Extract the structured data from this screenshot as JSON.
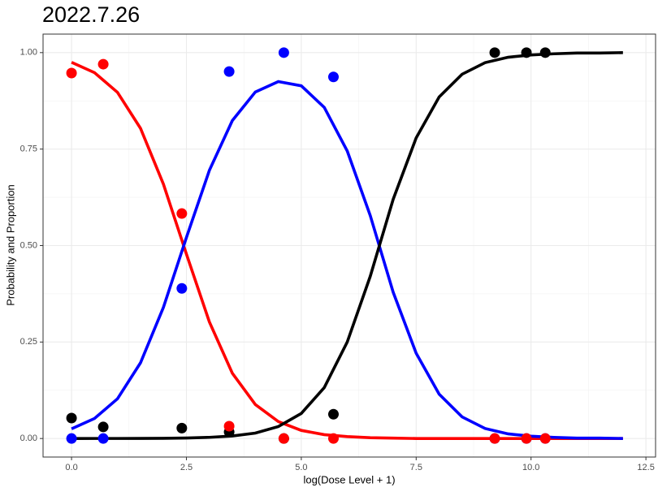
{
  "chart_data": {
    "type": "line",
    "title": "2022.7.26",
    "x_label": "log(Dose Level + 1)",
    "y_label": "Probability and Proportion",
    "xlim": [
      -0.62,
      12.71
    ],
    "ylim": [
      -0.048,
      1.048
    ],
    "xticks": [
      {
        "value": 0,
        "label": "0.0"
      },
      2.5,
      {
        "value": 5,
        "label": "5.0"
      },
      7.5,
      {
        "value": 10,
        "label": "10.0"
      },
      12.5
    ],
    "yticks": [
      {
        "value": 0,
        "label": "0.00"
      },
      0.25,
      {
        "value": 0.5,
        "label": "0.50"
      },
      0.75,
      {
        "value": 1,
        "label": "1.00"
      }
    ],
    "grid": true,
    "series": [
      {
        "mode": "lines",
        "color": "#ff0000",
        "x": [
          0,
          0.5,
          1,
          1.5,
          2,
          2.5,
          3,
          3.5,
          4,
          4.5,
          5,
          5.5,
          6,
          6.5,
          7,
          7.5,
          8,
          8.5,
          9,
          9.5,
          10,
          10.5,
          11,
          11.5,
          12
        ],
        "values": [
          0.975,
          0.948,
          0.897,
          0.804,
          0.659,
          0.478,
          0.302,
          0.169,
          0.088,
          0.044,
          0.021,
          0.01,
          0.005,
          0.002,
          0.001,
          0,
          0,
          0,
          0,
          0,
          0,
          0,
          0,
          0,
          0
        ]
      },
      {
        "mode": "lines",
        "color": "#0000ff",
        "x": [
          0,
          0.5,
          1,
          1.5,
          2,
          2.5,
          3,
          3.5,
          4,
          4.5,
          5,
          5.5,
          6,
          6.5,
          7,
          7.5,
          8,
          8.5,
          9,
          9.5,
          10,
          10.5,
          11,
          11.5,
          12
        ],
        "values": [
          0.025,
          0.052,
          0.103,
          0.196,
          0.34,
          0.521,
          0.695,
          0.824,
          0.898,
          0.925,
          0.914,
          0.858,
          0.745,
          0.578,
          0.379,
          0.221,
          0.115,
          0.056,
          0.026,
          0.012,
          0.006,
          0.003,
          0.001,
          0.001,
          0
        ]
      },
      {
        "mode": "lines",
        "color": "#000000",
        "x": [
          0,
          0.5,
          1,
          1.5,
          2,
          2.5,
          3,
          3.5,
          4,
          4.5,
          5,
          5.5,
          6,
          6.5,
          7,
          7.5,
          8,
          8.5,
          9,
          9.5,
          10,
          10.5,
          11,
          11.5,
          12
        ],
        "values": [
          0,
          0.0001,
          0.0001,
          0.0003,
          0.0006,
          0.0014,
          0.003,
          0.0066,
          0.014,
          0.031,
          0.065,
          0.132,
          0.25,
          0.42,
          0.62,
          0.779,
          0.885,
          0.944,
          0.974,
          0.988,
          0.994,
          0.997,
          0.999,
          0.999,
          1
        ]
      },
      {
        "mode": "markers",
        "color": "#0000ff",
        "x": [
          0,
          0.69,
          2.4,
          3.43,
          4.62,
          5.7,
          9.21,
          9.9,
          10.31
        ],
        "values": [
          0,
          0,
          0.389,
          0.951,
          1,
          0.937,
          0,
          0,
          0
        ]
      },
      {
        "mode": "markers",
        "color": "#000000",
        "x": [
          0,
          0.69,
          2.4,
          3.43,
          4.62,
          5.7,
          9.21,
          9.9,
          10.31
        ],
        "values": [
          0.053,
          0.03,
          0.027,
          0.017,
          0,
          0.063,
          1,
          1,
          1
        ]
      },
      {
        "mode": "markers",
        "color": "#ff0000",
        "x": [
          0,
          0.69,
          2.4,
          3.43,
          4.62,
          5.7,
          9.21,
          9.9,
          10.31
        ],
        "values": [
          0.947,
          0.97,
          0.583,
          0.032,
          0,
          0,
          0,
          0,
          0
        ]
      }
    ]
  }
}
